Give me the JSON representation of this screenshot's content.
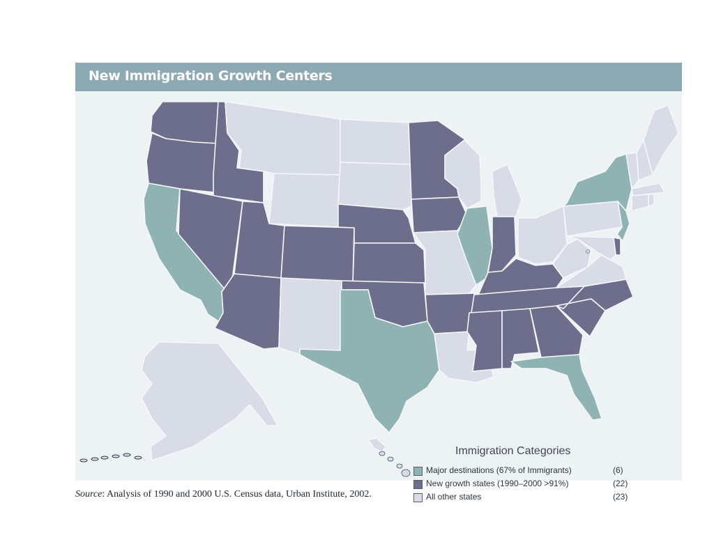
{
  "title": "New Immigration Growth Centers",
  "colors": {
    "title_bar": "#8da9b4",
    "panel_bg": "#edf2f4",
    "major": "#8fb3b3",
    "new_growth": "#6d6e8c",
    "other": "#d8dce6"
  },
  "legend": {
    "title": "Immigration Categories",
    "items": [
      {
        "key": "major",
        "label": "Major destinations (67% of Immigrants)",
        "count": "(6)"
      },
      {
        "key": "new_growth",
        "label": "New growth states (1990–2000 >91%)",
        "count": "(22)"
      },
      {
        "key": "other",
        "label": "All other states",
        "count": "(23)"
      }
    ]
  },
  "states": {
    "major": [
      "California",
      "Texas",
      "Florida",
      "Illinois",
      "New York",
      "New Jersey"
    ],
    "new_growth": [
      "Washington",
      "Oregon",
      "Idaho",
      "Nevada",
      "Utah",
      "Arizona",
      "Colorado",
      "Nebraska",
      "Kansas",
      "Oklahoma",
      "Minnesota",
      "Iowa",
      "Arkansas",
      "Indiana",
      "Kentucky",
      "Tennessee",
      "Mississippi",
      "Alabama",
      "Georgia",
      "South Carolina",
      "North Carolina",
      "Delaware"
    ],
    "other": [
      "Montana",
      "Wyoming",
      "North Dakota",
      "South Dakota",
      "New Mexico",
      "Missouri",
      "Louisiana",
      "Wisconsin",
      "Michigan",
      "Ohio",
      "West Virginia",
      "Virginia",
      "Pennsylvania",
      "Maryland",
      "Connecticut",
      "Rhode Island",
      "Massachusetts",
      "Vermont",
      "New Hampshire",
      "Maine",
      "Alaska",
      "Hawaii",
      "District of Columbia"
    ]
  },
  "source": {
    "label": "Source",
    "text": ": Analysis of 1990 and 2000 U.S. Census data, Urban Institute, 2002."
  }
}
